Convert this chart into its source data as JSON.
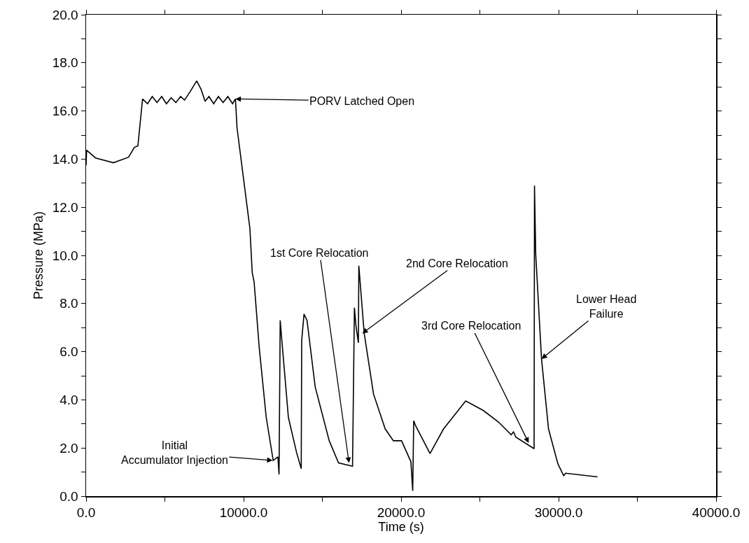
{
  "chart_data": {
    "type": "line",
    "xlabel": "Time (s)",
    "ylabel": "Pressure (MPa)",
    "x": [
      0,
      30,
      600,
      1733,
      2696,
      3067,
      3289,
      3585,
      3900,
      4200,
      4500,
      4800,
      5100,
      5400,
      5700,
      6000,
      6250,
      6600,
      7022,
      7300,
      7556,
      7800,
      8100,
      8400,
      8700,
      9000,
      9300,
      9481,
      9585,
      10400,
      10548,
      10667,
      10991,
      11436,
      11880,
      12178,
      12250,
      12324,
      12427,
      12844,
      13360,
      13658,
      13689,
      13836,
      14027,
      14547,
      15436,
      16027,
      16916,
      17036,
      17138,
      17289,
      17316,
      17658,
      18249,
      18991,
      19511,
      20027,
      20622,
      20738,
      20800,
      20916,
      21836,
      22693,
      24102,
      25213,
      26178,
      26991,
      27138,
      27289,
      28444,
      28470,
      28547,
      28916,
      29360,
      29956,
      30324,
      30444,
      32471
    ],
    "values": [
      13.75,
      14.37,
      14.05,
      13.85,
      14.08,
      14.49,
      14.55,
      16.5,
      16.3,
      16.6,
      16.35,
      16.6,
      16.3,
      16.55,
      16.35,
      16.6,
      16.45,
      16.8,
      17.25,
      16.9,
      16.4,
      16.6,
      16.3,
      16.6,
      16.35,
      16.6,
      16.3,
      16.5,
      15.29,
      11.12,
      9.28,
      8.9,
      6.18,
      3.27,
      1.48,
      1.63,
      0.9,
      7.3,
      6.47,
      3.27,
      1.82,
      1.14,
      6.47,
      7.56,
      7.3,
      4.53,
      2.3,
      1.38,
      1.24,
      7.83,
      7.05,
      6.37,
      9.57,
      6.76,
      4.24,
      2.79,
      2.3,
      2.3,
      1.43,
      0.22,
      3.13,
      2.93,
      1.77,
      2.79,
      3.95,
      3.56,
      3.08,
      2.55,
      2.67,
      2.45,
      1.97,
      12.9,
      10.06,
      5.7,
      2.79,
      1.34,
      0.85,
      0.95,
      0.8
    ],
    "color": "#000000",
    "line_style": "solid",
    "marker": "none",
    "grid": false,
    "xlim": [
      0,
      40000
    ],
    "xticks": [
      {
        "value": 0,
        "label": "0.0"
      },
      {
        "value": 5000,
        "label": null
      },
      {
        "value": 10000,
        "label": "10000.0"
      },
      {
        "value": 15000,
        "label": null
      },
      {
        "value": 20000,
        "label": "20000.0"
      },
      {
        "value": 25000,
        "label": null
      },
      {
        "value": 30000,
        "label": "30000.0"
      },
      {
        "value": 35000,
        "label": null
      },
      {
        "value": 40000,
        "label": "40000.0"
      }
    ],
    "ylim": [
      0,
      20
    ],
    "yticks": [
      {
        "value": 0,
        "label": "0.0"
      },
      {
        "value": 1,
        "label": null
      },
      {
        "value": 2,
        "label": "2.0"
      },
      {
        "value": 3,
        "label": null
      },
      {
        "value": 4,
        "label": "4.0"
      },
      {
        "value": 5,
        "label": null
      },
      {
        "value": 6,
        "label": "6.0"
      },
      {
        "value": 7,
        "label": null
      },
      {
        "value": 8,
        "label": "8.0"
      },
      {
        "value": 9,
        "label": null
      },
      {
        "value": 10,
        "label": "10.0"
      },
      {
        "value": 11,
        "label": null
      },
      {
        "value": 12,
        "label": "12.0"
      },
      {
        "value": 13,
        "label": null
      },
      {
        "value": 14,
        "label": "14.0"
      },
      {
        "value": 15,
        "label": null
      },
      {
        "value": 16,
        "label": "16.0"
      },
      {
        "value": 17,
        "label": null
      },
      {
        "value": 18,
        "label": "18.0"
      },
      {
        "value": 19,
        "label": null
      },
      {
        "value": 20,
        "label": "20.0"
      }
    ],
    "annotations": [
      {
        "text": "PORV Latched Open",
        "x": 9481,
        "y": 16.5
      },
      {
        "text": "1st Core Relocation",
        "x": 16693,
        "y": 1.38
      },
      {
        "text": "2nd Core Relocation",
        "x": 17538,
        "y": 6.76
      },
      {
        "text": "3rd Core Relocation",
        "x": 28102,
        "y": 2.21
      },
      {
        "text": "Lower Head\nFailure",
        "x": 28916,
        "y": 5.7
      },
      "Initial\nAccumulator Injection"
    ]
  }
}
